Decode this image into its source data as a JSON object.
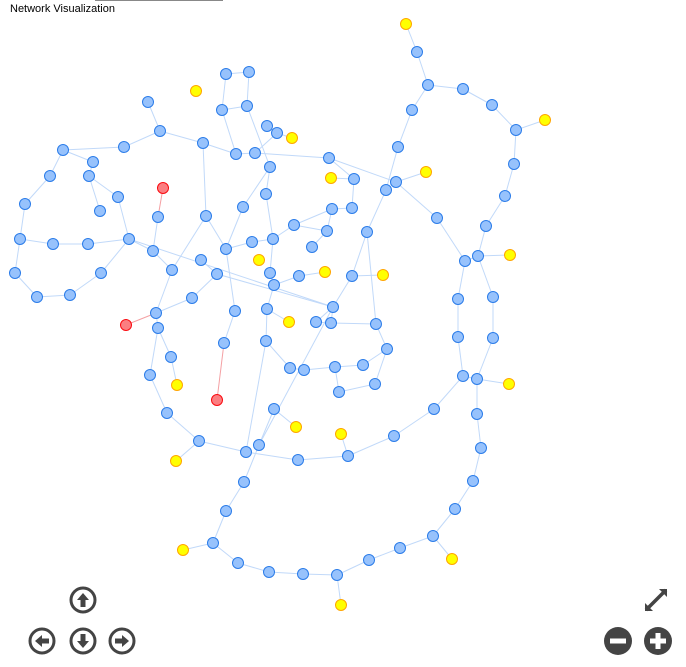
{
  "title": "Network Visualization",
  "colors": {
    "edge": "#c1d9f9",
    "edge_red": "#f4a0a3",
    "groups": {
      "blue": {
        "fill": "#97c2fc",
        "border": "#2b7ce9"
      },
      "yellow": {
        "fill": "#ffff00",
        "border": "#ffa500"
      },
      "red": {
        "fill": "#fb7e81",
        "border": "#fa0a10"
      }
    },
    "control": "#444444"
  },
  "nodes": {
    "yellow": [
      1,
      7,
      12,
      16,
      26,
      32,
      36,
      41,
      47,
      54,
      59,
      84,
      91,
      95,
      101,
      117,
      118,
      123,
      137
    ],
    "red": [
      52,
      78,
      121
    ]
  },
  "edges": [
    [
      1,
      2
    ],
    [
      2,
      3
    ],
    [
      3,
      4
    ],
    [
      4,
      5
    ],
    [
      5,
      6
    ],
    [
      6,
      7
    ],
    [
      6,
      8
    ],
    [
      8,
      9
    ],
    [
      9,
      10
    ],
    [
      10,
      11
    ],
    [
      11,
      12
    ],
    [
      11,
      13
    ],
    [
      13,
      14
    ],
    [
      14,
      15
    ],
    [
      15,
      16
    ],
    [
      15,
      17
    ],
    [
      17,
      18
    ],
    [
      18,
      19
    ],
    [
      19,
      20
    ],
    [
      20,
      11
    ],
    [
      20,
      21
    ],
    [
      21,
      24
    ],
    [
      24,
      94
    ],
    [
      3,
      22
    ],
    [
      22,
      23
    ],
    [
      23,
      25
    ],
    [
      24,
      26
    ],
    [
      25,
      99
    ],
    [
      15,
      27
    ],
    [
      27,
      28
    ],
    [
      28,
      29
    ],
    [
      29,
      30
    ],
    [
      30,
      31
    ],
    [
      31,
      32
    ],
    [
      31,
      33
    ],
    [
      33,
      34
    ],
    [
      34,
      35
    ],
    [
      35,
      36
    ],
    [
      35,
      37
    ],
    [
      37,
      38
    ],
    [
      38,
      39
    ],
    [
      39,
      40
    ],
    [
      40,
      41
    ],
    [
      40,
      42
    ],
    [
      42,
      43
    ],
    [
      43,
      44
    ],
    [
      44,
      136
    ],
    [
      136,
      137
    ],
    [
      44,
      125
    ],
    [
      45,
      46
    ],
    [
      46,
      47
    ],
    [
      46,
      48
    ],
    [
      48,
      49
    ],
    [
      49,
      50
    ],
    [
      50,
      51
    ],
    [
      51,
      52
    ],
    [
      50,
      53
    ],
    [
      53,
      54
    ],
    [
      45,
      55
    ],
    [
      55,
      56
    ],
    [
      56,
      57
    ],
    [
      57,
      58
    ],
    [
      58,
      17
    ],
    [
      56,
      59
    ],
    [
      60,
      61
    ],
    [
      61,
      62
    ],
    [
      62,
      63
    ],
    [
      63,
      64
    ],
    [
      63,
      65
    ],
    [
      64,
      66
    ],
    [
      65,
      69
    ],
    [
      69,
      70
    ],
    [
      70,
      71
    ],
    [
      71,
      72
    ],
    [
      72,
      73
    ],
    [
      70,
      74
    ],
    [
      74,
      75
    ],
    [
      75,
      76
    ],
    [
      76,
      77
    ],
    [
      77,
      73
    ],
    [
      66,
      67
    ],
    [
      67,
      73
    ],
    [
      66,
      68
    ],
    [
      61,
      87
    ],
    [
      87,
      88
    ],
    [
      88,
      92
    ],
    [
      92,
      94
    ],
    [
      85,
      82
    ],
    [
      82,
      83
    ],
    [
      83,
      86
    ],
    [
      86,
      85
    ],
    [
      85,
      88
    ],
    [
      86,
      93
    ],
    [
      89,
      90
    ],
    [
      90,
      92
    ],
    [
      90,
      91
    ],
    [
      93,
      102
    ],
    [
      87,
      104
    ],
    [
      104,
      81
    ],
    [
      81,
      51
    ],
    [
      104,
      105
    ],
    [
      73,
      80
    ],
    [
      80,
      79
    ],
    [
      79,
      78
    ],
    [
      80,
      81
    ],
    [
      73,
      125
    ],
    [
      102,
      110
    ],
    [
      110,
      114
    ],
    [
      114,
      115
    ],
    [
      115,
      116
    ],
    [
      116,
      117
    ],
    [
      115,
      122
    ],
    [
      122,
      123
    ],
    [
      122,
      124
    ],
    [
      124,
      135
    ],
    [
      135,
      134
    ],
    [
      125,
      126
    ],
    [
      125,
      127
    ],
    [
      127,
      128
    ],
    [
      128,
      129
    ],
    [
      129,
      130
    ],
    [
      130,
      131
    ],
    [
      134,
      132
    ],
    [
      132,
      133
    ],
    [
      133,
      129
    ],
    [
      131,
      132
    ],
    [
      103,
      105
    ],
    [
      105,
      109
    ],
    [
      109,
      110
    ],
    [
      110,
      111
    ],
    [
      111,
      112
    ],
    [
      112,
      113
    ],
    [
      111,
      97
    ],
    [
      97,
      98
    ],
    [
      98,
      96
    ],
    [
      96,
      95
    ],
    [
      94,
      96
    ],
    [
      97,
      112
    ],
    [
      99,
      100
    ],
    [
      100,
      125
    ],
    [
      100,
      101
    ],
    [
      106,
      107
    ],
    [
      107,
      108
    ],
    [
      108,
      51
    ],
    [
      107,
      125
    ],
    [
      105,
      119
    ],
    [
      119,
      120
    ],
    [
      120,
      121
    ],
    [
      93,
      103
    ],
    [
      124,
      45
    ],
    [
      126,
      127
    ],
    [
      99,
      128
    ]
  ],
  "controls": {
    "up": "arrow-up",
    "down": "arrow-down",
    "left": "arrow-left",
    "right": "arrow-right",
    "zoom_in": "plus",
    "zoom_out": "minus",
    "fit": "expand"
  }
}
